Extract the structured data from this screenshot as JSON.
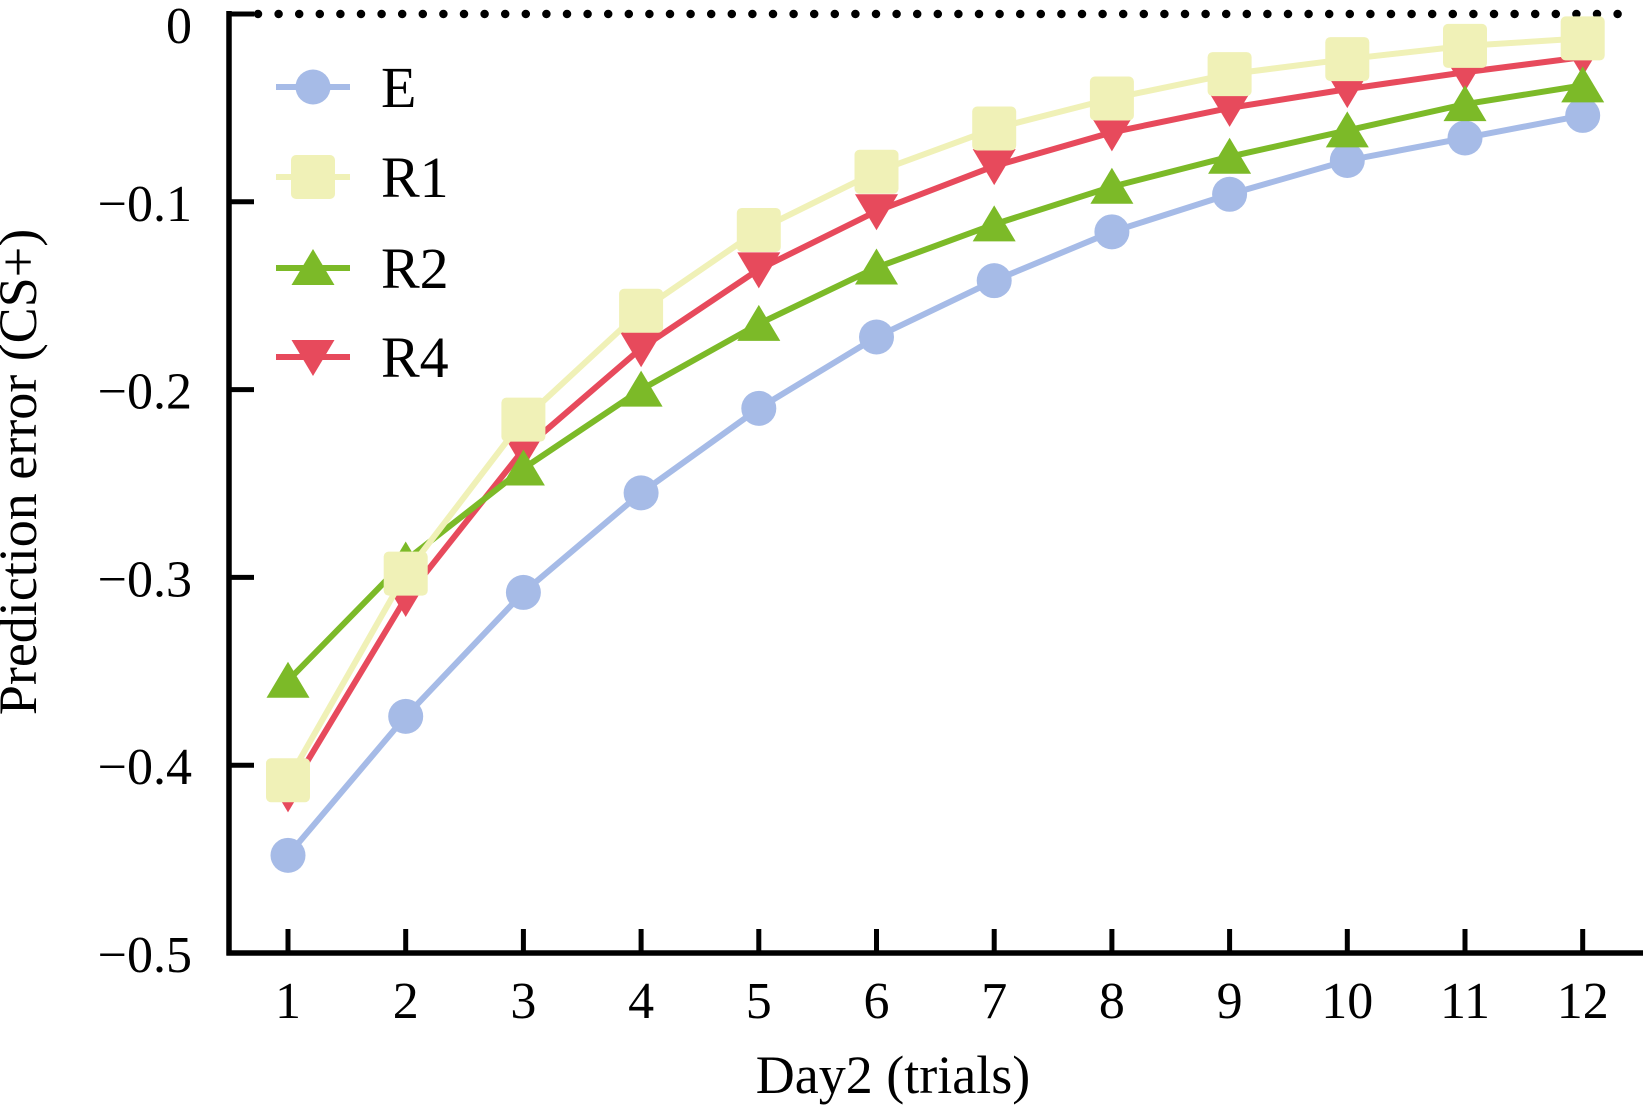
{
  "chart_data": {
    "type": "line",
    "title": "",
    "xlabel": "Day2 (trials)",
    "ylabel": "Prediction error (CS+)",
    "x": [
      1,
      2,
      3,
      4,
      5,
      6,
      7,
      8,
      9,
      10,
      11,
      12
    ],
    "xtick_labels": [
      "1",
      "2",
      "3",
      "4",
      "5",
      "6",
      "7",
      "8",
      "9",
      "10",
      "11",
      "12"
    ],
    "yticks": [
      0,
      -0.1,
      -0.2,
      -0.3,
      -0.4,
      -0.5
    ],
    "ytick_labels": [
      "0",
      "−0.1",
      "−0.2",
      "−0.3",
      "−0.4",
      "−0.5"
    ],
    "xlim": [
      0.5,
      12.6
    ],
    "ylim": [
      -0.5,
      0
    ],
    "grid": false,
    "legend_position": "upper-left-inside",
    "reference_line": {
      "y": 0,
      "style": "dotted",
      "color": "#000000"
    },
    "axis_color": "#000000",
    "series": [
      {
        "name": "E",
        "marker": "circle",
        "color": "#a6bbe7",
        "values": [
          -0.448,
          -0.374,
          -0.308,
          -0.255,
          -0.21,
          -0.172,
          -0.142,
          -0.116,
          -0.096,
          -0.078,
          -0.066,
          -0.054
        ]
      },
      {
        "name": "R1",
        "marker": "square",
        "color": "#f0f1b7",
        "values": [
          -0.408,
          -0.298,
          -0.216,
          -0.158,
          -0.115,
          -0.084,
          -0.061,
          -0.045,
          -0.032,
          -0.024,
          -0.017,
          -0.013
        ]
      },
      {
        "name": "R2",
        "marker": "triangle-up",
        "color": "#7cba28",
        "values": [
          -0.355,
          -0.291,
          -0.242,
          -0.2,
          -0.165,
          -0.135,
          -0.112,
          -0.092,
          -0.076,
          -0.062,
          -0.048,
          -0.038
        ]
      },
      {
        "name": "R4",
        "marker": "triangle-down",
        "color": "#e74a5c",
        "values": [
          -0.415,
          -0.311,
          -0.232,
          -0.178,
          -0.136,
          -0.105,
          -0.081,
          -0.063,
          -0.05,
          -0.04,
          -0.031,
          -0.023
        ]
      }
    ]
  }
}
